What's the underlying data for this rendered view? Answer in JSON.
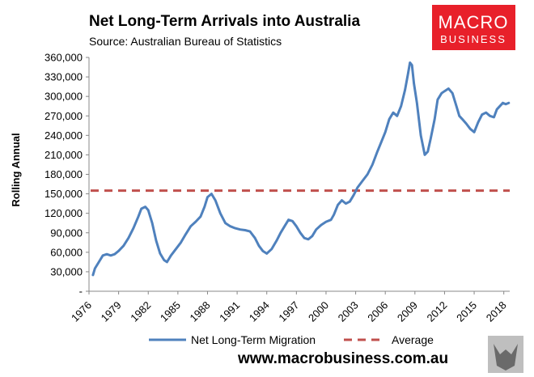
{
  "header": {
    "title": "Net Long-Term Arrivals into Australia",
    "subtitle": "Source: Australian Bureau of Statistics"
  },
  "logo": {
    "line1": "MACRO",
    "line2": "BUSINESS",
    "color": "#e8202a"
  },
  "footer": {
    "url": "www.macrobusiness.com.au"
  },
  "colors": {
    "series": "#4f81bd",
    "average": "#c0504d",
    "axis": "#888888"
  },
  "chart_data": {
    "type": "line",
    "title": "Net Long-Term Arrivals into Australia",
    "subtitle": "Source: Australian Bureau of Statistics",
    "xlabel": "",
    "ylabel": "Rolling Annual",
    "xlim": [
      1976,
      2018.6
    ],
    "ylim": [
      0,
      360000
    ],
    "grid": false,
    "legend_position": "bottom",
    "y_ticks": [
      {
        "value": 0,
        "label": "-"
      },
      {
        "value": 30000,
        "label": "30,000"
      },
      {
        "value": 60000,
        "label": "60,000"
      },
      {
        "value": 90000,
        "label": "90,000"
      },
      {
        "value": 120000,
        "label": "120,000"
      },
      {
        "value": 150000,
        "label": "150,000"
      },
      {
        "value": 180000,
        "label": "180,000"
      },
      {
        "value": 210000,
        "label": "210,000"
      },
      {
        "value": 240000,
        "label": "240,000"
      },
      {
        "value": 270000,
        "label": "270,000"
      },
      {
        "value": 300000,
        "label": "300,000"
      },
      {
        "value": 330000,
        "label": "330,000"
      },
      {
        "value": 360000,
        "label": "360,000"
      }
    ],
    "x_ticks": [
      {
        "value": 1976,
        "label": "1976"
      },
      {
        "value": 1979,
        "label": "1979"
      },
      {
        "value": 1982,
        "label": "1982"
      },
      {
        "value": 1985,
        "label": "1985"
      },
      {
        "value": 1988,
        "label": "1988"
      },
      {
        "value": 1991,
        "label": "1991"
      },
      {
        "value": 1994,
        "label": "1994"
      },
      {
        "value": 1997,
        "label": "1997"
      },
      {
        "value": 2000,
        "label": "2000"
      },
      {
        "value": 2003,
        "label": "2003"
      },
      {
        "value": 2006,
        "label": "2006"
      },
      {
        "value": 2009,
        "label": "2009"
      },
      {
        "value": 2012,
        "label": "2012"
      },
      {
        "value": 2015,
        "label": "2015"
      },
      {
        "value": 2018,
        "label": "2018"
      }
    ],
    "series": [
      {
        "name": "Net Long-Term Migration",
        "style": "solid",
        "x": [
          1976.4,
          1976.6,
          1977.0,
          1977.4,
          1977.8,
          1978.2,
          1978.6,
          1979.0,
          1979.5,
          1980.0,
          1980.5,
          1981.0,
          1981.3,
          1981.7,
          1982.0,
          1982.4,
          1982.8,
          1983.2,
          1983.6,
          1983.9,
          1984.3,
          1984.8,
          1985.3,
          1985.8,
          1986.3,
          1986.8,
          1987.3,
          1987.7,
          1988.0,
          1988.4,
          1988.8,
          1989.3,
          1989.8,
          1990.3,
          1990.8,
          1991.3,
          1991.8,
          1992.3,
          1992.8,
          1993.2,
          1993.6,
          1994.0,
          1994.5,
          1995.0,
          1995.4,
          1995.8,
          1996.2,
          1996.6,
          1997.0,
          1997.4,
          1997.8,
          1998.2,
          1998.6,
          1999.0,
          1999.5,
          2000.0,
          2000.5,
          2000.8,
          2001.2,
          2001.6,
          2002.0,
          2002.4,
          2002.8,
          2003.2,
          2003.7,
          2004.2,
          2004.7,
          2005.2,
          2005.6,
          2006.0,
          2006.4,
          2006.8,
          2007.2,
          2007.6,
          2008.0,
          2008.3,
          2008.5,
          2008.7,
          2008.9,
          2009.2,
          2009.6,
          2010.0,
          2010.3,
          2010.6,
          2011.0,
          2011.3,
          2011.7,
          2012.0,
          2012.4,
          2012.8,
          2013.2,
          2013.5,
          2013.8,
          2014.2,
          2014.6,
          2015.0,
          2015.4,
          2015.8,
          2016.2,
          2016.6,
          2017.0,
          2017.3,
          2017.6,
          2017.9,
          2018.2,
          2018.5
        ],
        "values": [
          25000,
          35000,
          45000,
          55000,
          57000,
          55000,
          57000,
          62000,
          70000,
          82000,
          97000,
          115000,
          127000,
          130000,
          125000,
          105000,
          78000,
          58000,
          48000,
          45000,
          55000,
          65000,
          75000,
          88000,
          100000,
          107000,
          115000,
          130000,
          145000,
          150000,
          140000,
          120000,
          105000,
          100000,
          97000,
          95000,
          94000,
          92000,
          82000,
          70000,
          62000,
          58000,
          65000,
          78000,
          90000,
          100000,
          110000,
          108000,
          100000,
          90000,
          82000,
          80000,
          85000,
          95000,
          102000,
          107000,
          110000,
          118000,
          133000,
          140000,
          135000,
          138000,
          148000,
          160000,
          170000,
          180000,
          195000,
          215000,
          230000,
          245000,
          265000,
          275000,
          270000,
          285000,
          310000,
          335000,
          352000,
          348000,
          320000,
          290000,
          240000,
          210000,
          215000,
          235000,
          265000,
          295000,
          305000,
          308000,
          312000,
          305000,
          285000,
          270000,
          265000,
          258000,
          250000,
          245000,
          260000,
          272000,
          275000,
          270000,
          268000,
          280000,
          285000,
          290000,
          288000,
          290000
        ]
      },
      {
        "name": "Average",
        "style": "dashed",
        "constant": 155000
      }
    ]
  }
}
